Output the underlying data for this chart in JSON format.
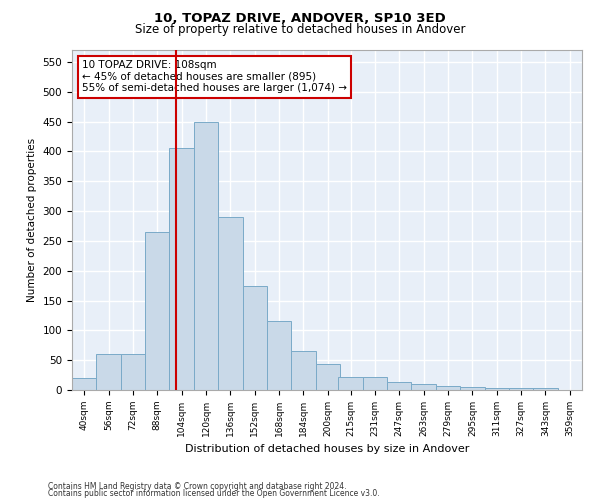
{
  "title1": "10, TOPAZ DRIVE, ANDOVER, SP10 3ED",
  "title2": "Size of property relative to detached houses in Andover",
  "xlabel": "Distribution of detached houses by size in Andover",
  "ylabel": "Number of detached properties",
  "footnote1": "Contains HM Land Registry data © Crown copyright and database right 2024.",
  "footnote2": "Contains public sector information licensed under the Open Government Licence v3.0.",
  "bin_edges": [
    40,
    56,
    72,
    88,
    104,
    120,
    136,
    152,
    168,
    184,
    200,
    215,
    231,
    247,
    263,
    279,
    295,
    311,
    327,
    343,
    359
  ],
  "bar_heights": [
    20,
    60,
    60,
    265,
    405,
    450,
    290,
    175,
    115,
    65,
    43,
    22,
    22,
    13,
    10,
    7,
    5,
    4,
    3,
    3
  ],
  "bar_color": "#c9d9e8",
  "bar_edge_color": "#7aaac8",
  "bg_color": "#e8eff8",
  "grid_color": "#ffffff",
  "vline_x": 108,
  "vline_color": "#cc0000",
  "annotation_line1": "10 TOPAZ DRIVE: 108sqm",
  "annotation_line2": "← 45% of detached houses are smaller (895)",
  "annotation_line3": "55% of semi-detached houses are larger (1,074) →",
  "annotation_box_color": "#ffffff",
  "annotation_border_color": "#cc0000",
  "ylim": [
    0,
    570
  ],
  "yticks": [
    0,
    50,
    100,
    150,
    200,
    250,
    300,
    350,
    400,
    450,
    500,
    550
  ]
}
